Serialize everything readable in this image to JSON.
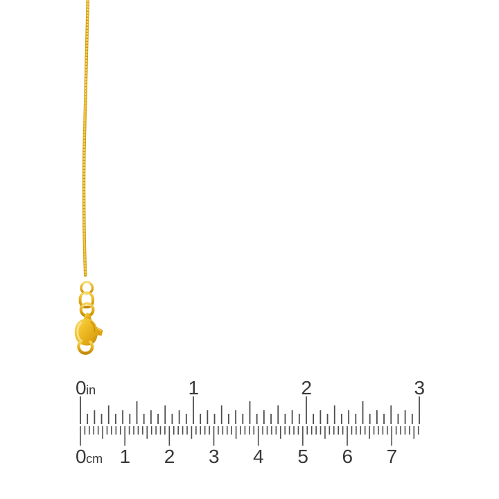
{
  "image": {
    "description": "gold chain necklace with lobster clasp shown against ruler",
    "background_color": "#ffffff"
  },
  "necklace": {
    "chain_style": "box-chain",
    "gold_base": "#DFA614",
    "gold_mid": "#EDB91F",
    "gold_light": "#F9DC74",
    "gold_highlight": "#FDF3C2",
    "gold_shadow": "#B27E05"
  },
  "ruler": {
    "tick_color": "#4d4d4d",
    "label_color": "#383838",
    "top_scale": {
      "unit": "in",
      "labels": [
        "0",
        "1",
        "2",
        "3"
      ],
      "divisions_per_unit": 16,
      "max": 3
    },
    "bottom_scale": {
      "unit": "cm",
      "labels": [
        "0",
        "1",
        "2",
        "3",
        "4",
        "5",
        "6",
        "7"
      ],
      "divisions_per_unit": 10,
      "max": 7.6
    }
  }
}
